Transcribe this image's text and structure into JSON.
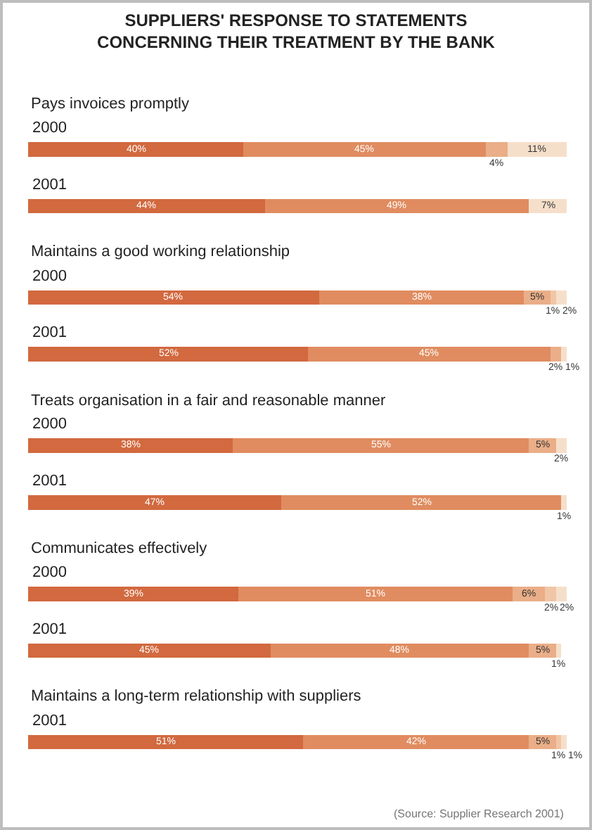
{
  "chart_data": {
    "type": "bar",
    "orientation": "horizontal",
    "stacked": true,
    "title": "SUPPLIERS' RESPONSE TO STATEMENTS\nCONCERNING THEIR TREATMENT BY THE BANK",
    "categories": [
      "2000",
      "2001",
      "2000",
      "2001",
      "2000",
      "2001",
      "2000",
      "2001",
      "2001"
    ],
    "series": [
      {
        "color": "#d2693f",
        "values": [
          40,
          44,
          54,
          52,
          38,
          47,
          39,
          45,
          51
        ],
        "value_labels": [
          "40%",
          "44%",
          "54%",
          "52%",
          "38%",
          "47%",
          "39%",
          "45%",
          "51%"
        ]
      },
      {
        "color": "#e08c60",
        "values": [
          45,
          49,
          38,
          45,
          55,
          52,
          51,
          48,
          42
        ],
        "value_labels": [
          "45%",
          "49%",
          "38%",
          "45%",
          "55%",
          "52%",
          "51%",
          "48%",
          "42%"
        ]
      },
      {
        "color": "#eaae88",
        "values": [
          4,
          null,
          5,
          2,
          5,
          null,
          6,
          5,
          5
        ],
        "value_labels": [
          "4%",
          null,
          "5%",
          "2%",
          "5%",
          null,
          "6%",
          "5%",
          "5%"
        ]
      },
      {
        "color": "#f0c6a6",
        "values": [
          null,
          null,
          1,
          null,
          null,
          null,
          2,
          null,
          1
        ],
        "value_labels": [
          null,
          null,
          "1%",
          null,
          null,
          null,
          "2%",
          null,
          "1%"
        ]
      },
      {
        "color": "#f6dfca",
        "values": [
          11,
          7,
          2,
          1,
          2,
          1,
          2,
          1,
          1
        ],
        "value_labels": [
          "11%",
          "7%",
          "2%",
          "1%",
          "2%",
          "1%",
          "2%",
          "1%",
          "1%"
        ]
      }
    ],
    "tick_labels": "y",
    "grid": false,
    "annotations": [
      "Pays invoices promptly",
      "Maintains a good working relationship",
      "Treats organisation in a fair and reasonable manner",
      "Communicates effectively",
      "Maintains a long-term relationship with suppliers",
      "(Source: Supplier Research 2001)"
    ]
  }
}
